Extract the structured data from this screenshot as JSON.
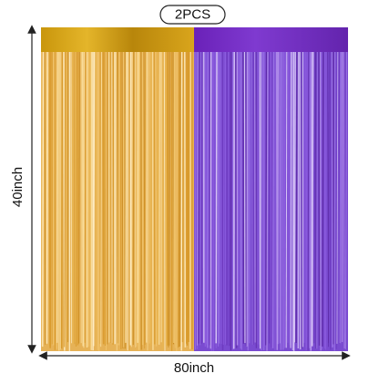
{
  "badge": "2PCS",
  "height_label": "40inch",
  "width_label": "80inch"
}
